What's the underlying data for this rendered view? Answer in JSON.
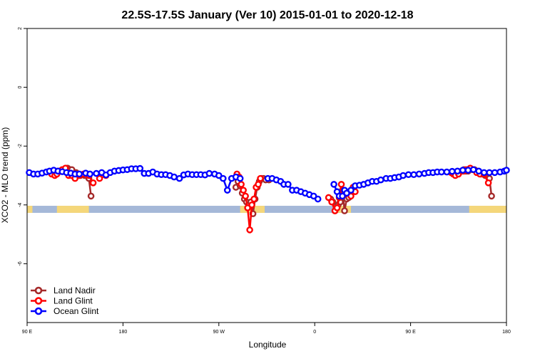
{
  "chart_data": {
    "type": "line",
    "title": "22.5S-17.5S January (Ver 10)   2015-01-01 to 2020-12-18",
    "xlabel": "Longitude",
    "ylabel": "XCO2 - MLO trend (ppm)",
    "xlim": [
      90,
      540
    ],
    "ylim": [
      -8.0,
      2.0
    ],
    "x_ticks": [
      {
        "value": 90,
        "label": "90 E"
      },
      {
        "value": 180,
        "label": "180"
      },
      {
        "value": 270,
        "label": "90 W"
      },
      {
        "value": 360,
        "label": "0"
      },
      {
        "value": 450,
        "label": "90 E"
      },
      {
        "value": 540,
        "label": "180"
      }
    ],
    "y_ticks": [
      {
        "value": 2,
        "label": "2"
      },
      {
        "value": 0,
        "label": "0"
      },
      {
        "value": -2,
        "label": "-2"
      },
      {
        "value": -4,
        "label": "-4"
      },
      {
        "value": -6,
        "label": "-6"
      }
    ],
    "grid": false,
    "legend_position": "bottom-left",
    "surface_band": {
      "y_range": [
        -4.27,
        -4.03
      ],
      "ocean_color": "#a5b8d8",
      "land_color": "#f5d77a",
      "land_segments": [
        [
          118,
          148
        ],
        [
          290,
          313
        ],
        [
          380,
          394
        ],
        [
          505,
          540
        ],
        [
          90,
          95
        ]
      ]
    },
    "series": [
      {
        "name": "Land Nadir",
        "color": "#a52a2a",
        "segments": [
          {
            "x": [
              113,
              115,
              117,
              119,
              121,
              123,
              125,
              128,
              130,
              132,
              136,
              138,
              140,
              144,
              148,
              150
            ],
            "y": [
              -2.9,
              -2.9,
              -2.9,
              -2.85,
              -2.85,
              -2.8,
              -2.8,
              -2.75,
              -2.8,
              -2.8,
              -2.9,
              -2.95,
              -3.0,
              -3.0,
              -3.1,
              -3.7
            ]
          },
          {
            "x": [
              286,
              288,
              290,
              292,
              294,
              296,
              298,
              300,
              302,
              304,
              306,
              308,
              310,
              312,
              314,
              317
            ],
            "y": [
              -3.4,
              -3.2,
              -3.35,
              -3.6,
              -3.8,
              -3.9,
              -4.0,
              -3.9,
              -4.3,
              -3.8,
              -3.4,
              -3.2,
              -3.1,
              -3.1,
              -3.15,
              -3.15
            ]
          },
          {
            "x": [
              375,
              377,
              379,
              382,
              384,
              386,
              388,
              390,
              392
            ],
            "y": [
              -3.8,
              -3.9,
              -4.2,
              -4.0,
              -3.9,
              -3.5,
              -4.2,
              -3.8,
              -3.75
            ]
          },
          {
            "x": [
              500,
              502,
              504,
              506,
              508,
              510,
              512,
              514,
              516,
              520,
              524,
              526
            ],
            "y": [
              -2.8,
              -2.85,
              -2.85,
              -2.8,
              -2.8,
              -2.8,
              -2.85,
              -2.9,
              -2.95,
              -3.0,
              -3.1,
              -3.7
            ]
          }
        ]
      },
      {
        "name": "Land Glint",
        "color": "#ff0000",
        "segments": [
          {
            "x": [
              113,
              116,
              118,
              121,
              123,
              126,
              129,
              132,
              135,
              139,
              143
            ],
            "y": [
              -2.95,
              -3.0,
              -2.95,
              -2.85,
              -2.8,
              -2.75,
              -3.0,
              -3.0,
              -3.1,
              -3.0,
              -2.95
            ]
          },
          {
            "x": [
              148,
              152
            ],
            "y": [
              -3.0,
              -3.25
            ]
          },
          {
            "x": [
              158,
              164
            ],
            "y": [
              -3.1,
              -3.0
            ]
          },
          {
            "x": [
              287,
              289,
              291,
              293,
              295,
              297,
              299,
              301,
              303,
              305,
              307,
              309
            ],
            "y": [
              -2.95,
              -3.05,
              -3.3,
              -3.5,
              -3.7,
              -4.1,
              -4.85,
              -4.0,
              -3.8,
              -3.4,
              -3.3,
              -3.1
            ]
          },
          {
            "x": [
              373,
              376,
              379,
              381,
              383,
              385,
              387,
              389
            ],
            "y": [
              -3.75,
              -3.9,
              -4.2,
              -4.1,
              -3.75,
              -3.3,
              -3.55,
              -3.6
            ]
          },
          {
            "x": [
              394,
              396,
              398
            ],
            "y": [
              -3.7,
              -3.4,
              -3.55
            ]
          },
          {
            "x": [
              488,
              490,
              492,
              495,
              498,
              500,
              502,
              504,
              506,
              509,
              512,
              515,
              519,
              523
            ],
            "y": [
              -2.9,
              -2.95,
              -3.0,
              -2.95,
              -2.85,
              -2.85,
              -2.8,
              -2.8,
              -2.75,
              -2.8,
              -2.9,
              -2.95,
              -2.95,
              -3.25
            ]
          }
        ]
      },
      {
        "name": "Ocean Glint",
        "color": "#0000ff",
        "segments": [
          {
            "x": [
              92,
              96,
              100,
              104,
              108,
              111,
              115,
              119,
              123,
              127,
              131,
              135,
              139,
              145,
              149,
              155,
              160,
              164,
              168,
              172,
              176,
              180,
              184,
              188,
              192,
              196,
              200,
              204,
              208,
              212,
              216,
              220,
              224,
              228,
              233,
              237,
              241,
              245,
              249,
              253,
              257,
              261,
              266,
              270,
              274,
              278,
              282,
              286,
              290
            ],
            "y": [
              -2.9,
              -2.95,
              -2.95,
              -2.92,
              -2.88,
              -2.85,
              -2.82,
              -2.85,
              -2.87,
              -2.9,
              -2.92,
              -2.95,
              -2.95,
              -2.92,
              -2.95,
              -2.93,
              -2.9,
              -2.98,
              -2.9,
              -2.85,
              -2.83,
              -2.81,
              -2.8,
              -2.77,
              -2.77,
              -2.76,
              -2.93,
              -2.93,
              -2.88,
              -2.95,
              -2.97,
              -2.97,
              -3.0,
              -3.05,
              -3.1,
              -2.98,
              -2.95,
              -2.97,
              -2.97,
              -2.97,
              -2.98,
              -2.93,
              -2.95,
              -3.0,
              -3.1,
              -3.5,
              -3.1,
              -3.05,
              -3.1
            ]
          },
          {
            "x": [
              316,
              320,
              324,
              328,
              331,
              335,
              339,
              343,
              347,
              351,
              355
            ],
            "y": [
              -3.1,
              -3.1,
              -3.15,
              -3.2,
              -3.3,
              -3.3,
              -3.5,
              -3.5,
              -3.55,
              -3.6,
              -3.65
            ]
          },
          {
            "x": [
              359,
              363
            ],
            "y": [
              -3.7,
              -3.8
            ]
          },
          {
            "x": [
              378,
              381,
              383,
              386,
              388,
              390
            ],
            "y": [
              -3.3,
              -3.55,
              -3.7,
              -3.7,
              -3.5,
              -3.6
            ]
          },
          {
            "x": [
              394,
              398,
              402,
              406,
              410,
              414,
              418,
              422,
              427,
              431,
              435,
              439,
              443,
              448,
              453,
              458,
              463,
              467,
              471,
              475,
              479,
              484,
              489,
              494,
              499,
              504,
              509,
              514,
              519,
              524,
              529,
              534,
              538,
              540
            ],
            "y": [
              -3.5,
              -3.35,
              -3.33,
              -3.3,
              -3.25,
              -3.2,
              -3.2,
              -3.15,
              -3.1,
              -3.1,
              -3.07,
              -3.05,
              -3.0,
              -2.97,
              -2.97,
              -2.95,
              -2.93,
              -2.9,
              -2.9,
              -2.88,
              -2.88,
              -2.88,
              -2.86,
              -2.85,
              -2.82,
              -2.82,
              -2.8,
              -2.85,
              -2.9,
              -2.9,
              -2.9,
              -2.88,
              -2.85,
              -2.82
            ]
          }
        ]
      }
    ]
  }
}
